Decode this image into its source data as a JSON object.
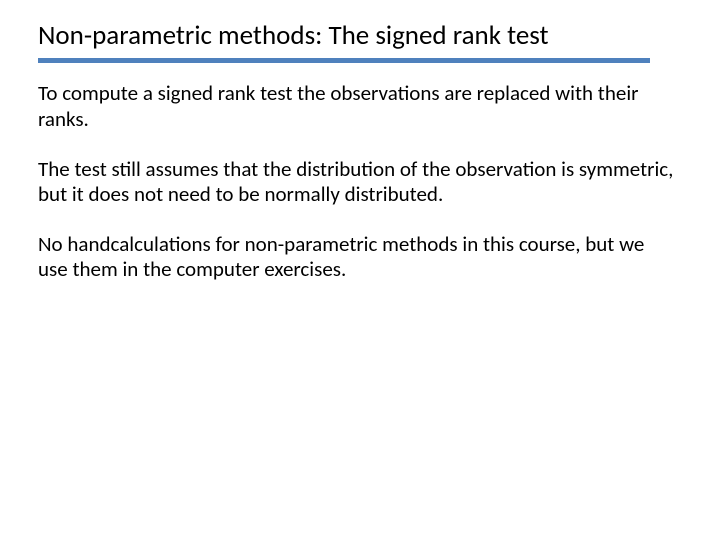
{
  "slide": {
    "title": "Non-parametric methods: The signed rank test",
    "rule_color": "#4f81bd",
    "paragraphs": [
      "To compute a signed rank test the observations are replaced with their ranks.",
      "The test still assumes that the distribution of the observation is symmetric, but it does not need to be normally distributed.",
      "No handcalculations for non-parametric methods in this course, but we use them in the computer exercises."
    ],
    "background_color": "#ffffff",
    "text_color": "#000000",
    "title_fontsize": 27,
    "body_fontsize": 21
  }
}
